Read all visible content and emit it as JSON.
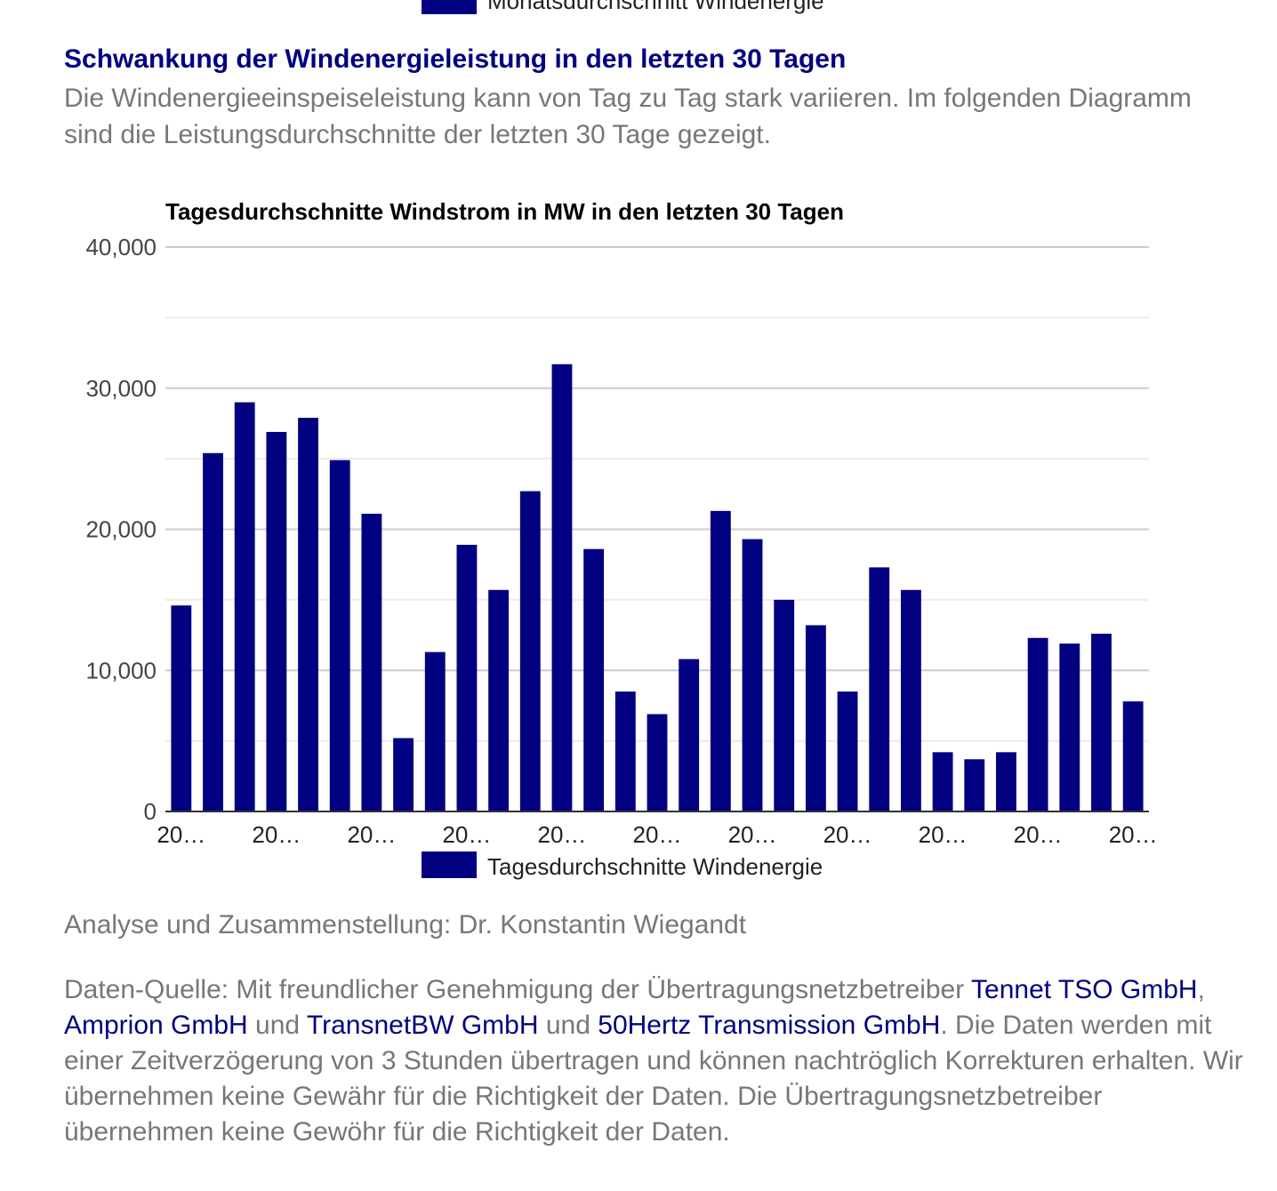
{
  "top_legend": {
    "label": "Monatsdurchschnitt Windenergie",
    "color": "#000080"
  },
  "section": {
    "title": "Schwankung der Windenergieleistung in den letzten 30 Tagen",
    "intro": "Die Windenergieeinspeiseleistung kann von Tag zu Tag stark variieren. Im folgenden Diagramm sind die Leistungsdurchschnitte der letzten 30 Tage gezeigt."
  },
  "chart_data": {
    "type": "bar",
    "title": "Tagesdurchschnitte Windstrom in MW in den letzten 30 Tagen",
    "xlabel": "",
    "ylabel": "",
    "ylim": [
      0,
      40000
    ],
    "yticks": [
      "0",
      "10,000",
      "20,000",
      "30,000",
      "40,000"
    ],
    "ytick_values": [
      0,
      10000,
      20000,
      30000,
      40000
    ],
    "minor_gridlines": [
      5000,
      15000,
      25000,
      35000
    ],
    "x_tick_labels": [
      "20…",
      "20…",
      "20…",
      "20…",
      "20…",
      "20…",
      "20…",
      "20…",
      "20…",
      "20…",
      "20…"
    ],
    "x_tick_every": 3,
    "grid": true,
    "legend_position": "bottom",
    "color": "#000080",
    "series": [
      {
        "name": "Tagesdurchschnitte Windenergie",
        "values": [
          14600,
          25400,
          29000,
          26900,
          27900,
          24900,
          21100,
          5200,
          11300,
          18900,
          15700,
          22700,
          31700,
          18600,
          8500,
          6900,
          10800,
          21300,
          19300,
          15000,
          13200,
          8500,
          17300,
          15700,
          4200,
          3700,
          4200,
          12300,
          11900,
          12600,
          7800
        ]
      }
    ]
  },
  "analysis": "Analyse und Zusammenstellung: Dr. Konstantin Wiegandt",
  "source": {
    "prefix": "Daten-Quelle: Mit freundlicher Genehmigung der Übertragungsnetzbetreiber ",
    "link1": "Tennet TSO GmbH",
    "sep1": ", ",
    "link2": "Amprion GmbH",
    "sep2": " und ",
    "link3": "TransnetBW GmbH",
    "sep3": " und ",
    "link4": "50Hertz Transmission GmbH",
    "suffix": ". Die Daten werden mit einer Zeitverzögerung von 3 Stunden übertragen und können nachtröglich Korrekturen erhalten. Wir übernehmen keine Gewähr für die Richtigkeit der Daten. Die Übertragungsnetzbetreiber übernehmen keine Gewöhr für die Richtigkeit der Daten."
  }
}
